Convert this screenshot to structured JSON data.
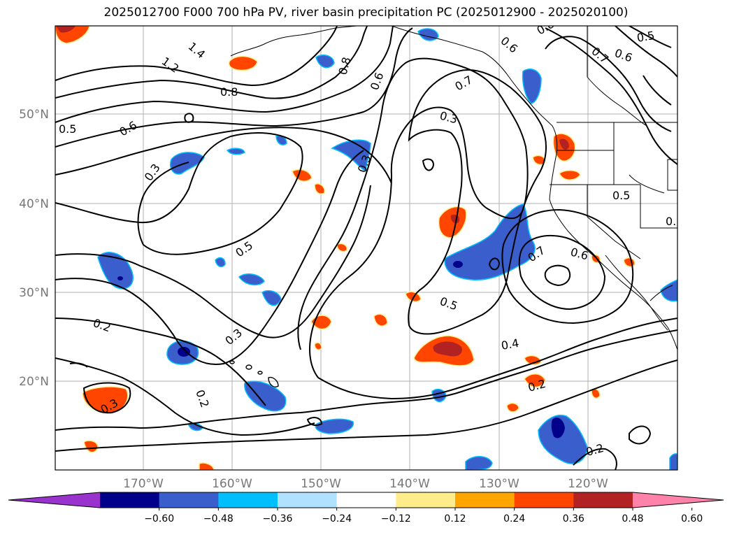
{
  "title": "2025012700 F000 700 hPa PV, river basin precipitation PC (2025012900 - 2025020100)",
  "lat_labels": [
    "50°N",
    "40°N",
    "30°N",
    "20°N"
  ],
  "lon_labels": [
    "170°W",
    "160°W",
    "150°W",
    "140°W",
    "130°W",
    "120°W"
  ],
  "contour_labels": [
    "1.4",
    "1.2",
    "0.8",
    "0.7",
    "0.6",
    "0.5",
    "0.4",
    "0.3",
    "0.2"
  ],
  "colorbar": {
    "ticks": [
      "−0.60",
      "−0.48",
      "−0.36",
      "−0.24",
      "−0.12",
      "0.12",
      "0.24",
      "0.36",
      "0.48",
      "0.60"
    ],
    "colors": [
      "#9a32cd",
      "#00008b",
      "#3a5fcd",
      "#00bfff",
      "#b0e2ff",
      "#ffffff",
      "#ffec8b",
      "#ffa500",
      "#ff4500",
      "#b22222",
      "#ff82ab"
    ]
  }
}
